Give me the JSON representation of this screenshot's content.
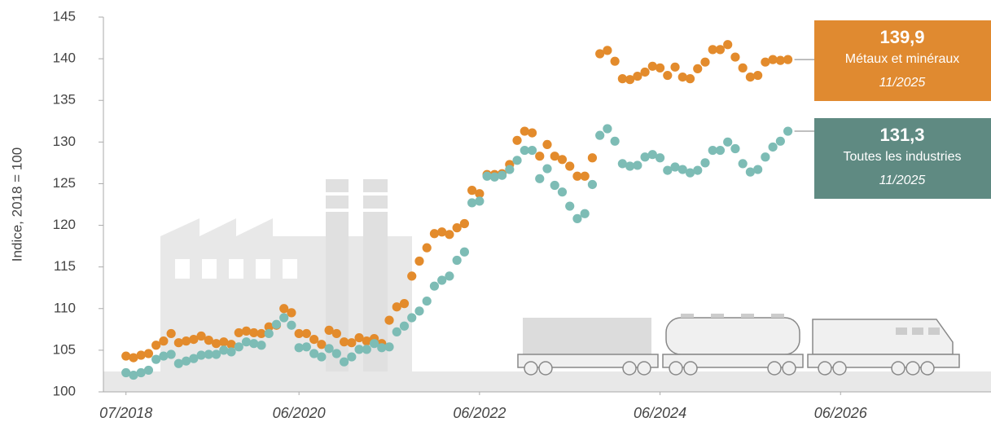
{
  "chart_data": {
    "type": "scatter",
    "y_label": "Indice, 2018 = 100",
    "x": [
      "2018-07",
      "2018-08",
      "2018-09",
      "2018-10",
      "2018-11",
      "2018-12",
      "2019-01",
      "2019-02",
      "2019-03",
      "2019-04",
      "2019-05",
      "2019-06",
      "2019-07",
      "2019-08",
      "2019-09",
      "2019-10",
      "2019-11",
      "2019-12",
      "2020-01",
      "2020-02",
      "2020-03",
      "2020-04",
      "2020-05",
      "2020-06",
      "2020-07",
      "2020-08",
      "2020-09",
      "2020-10",
      "2020-11",
      "2020-12",
      "2021-01",
      "2021-02",
      "2021-03",
      "2021-04",
      "2021-05",
      "2021-06",
      "2021-07",
      "2021-08",
      "2021-09",
      "2021-10",
      "2021-11",
      "2021-12",
      "2022-01",
      "2022-02",
      "2022-03",
      "2022-04",
      "2022-05",
      "2022-06",
      "2022-07",
      "2022-08",
      "2022-09",
      "2022-10",
      "2022-11",
      "2022-12",
      "2023-01",
      "2023-02",
      "2023-03",
      "2023-04",
      "2023-05",
      "2023-06",
      "2023-07",
      "2023-08",
      "2023-09",
      "2023-10",
      "2023-11",
      "2023-12",
      "2024-01",
      "2024-02",
      "2024-03",
      "2024-04",
      "2024-05",
      "2024-06",
      "2024-07",
      "2024-08",
      "2024-09",
      "2024-10",
      "2024-11",
      "2024-12",
      "2025-01",
      "2025-02",
      "2025-03",
      "2025-04",
      "2025-05",
      "2025-06",
      "2025-07",
      "2025-08",
      "2025-09",
      "2025-10",
      "2025-11"
    ],
    "series": [
      {
        "name": "Métaux et minéraux",
        "color": "#e38b2c",
        "label_color": "#e08a30",
        "last_label": "139,9",
        "last_date": "11/2025",
        "values": [
          104.3,
          104.1,
          104.4,
          104.6,
          105.6,
          106.1,
          107.0,
          105.9,
          106.1,
          106.3,
          106.7,
          106.2,
          105.8,
          106.0,
          105.7,
          107.1,
          107.3,
          107.1,
          107.0,
          107.8,
          108.0,
          110.0,
          109.5,
          107.0,
          107.0,
          106.3,
          105.7,
          107.4,
          107.0,
          106.0,
          105.9,
          106.5,
          106.1,
          106.4,
          105.8,
          108.6,
          110.2,
          110.6,
          113.9,
          115.7,
          117.3,
          119.0,
          119.2,
          118.9,
          119.7,
          120.2,
          124.2,
          123.8,
          126.1,
          126.1,
          126.2,
          127.3,
          130.2,
          131.3,
          131.1,
          128.3,
          129.7,
          128.3,
          127.9,
          127.1,
          125.9,
          125.9,
          128.1,
          140.6,
          141.0,
          139.7,
          137.6,
          137.5,
          137.9,
          138.4,
          139.1,
          138.9,
          138.0,
          139.0,
          137.8,
          137.6,
          138.8,
          139.6,
          141.1,
          141.1,
          141.7,
          140.2,
          138.9,
          137.8,
          138.0,
          139.6,
          139.9,
          139.8,
          139.9
        ]
      },
      {
        "name": "Toutes les industries",
        "color": "#7dbcb5",
        "label_color": "#5f8a82",
        "last_label": "131,3",
        "last_date": "11/2025",
        "values": [
          102.3,
          102.0,
          102.3,
          102.6,
          103.9,
          104.3,
          104.5,
          103.4,
          103.7,
          104.0,
          104.4,
          104.5,
          104.5,
          105.0,
          104.8,
          105.4,
          106.0,
          105.8,
          105.6,
          107.0,
          108.1,
          108.9,
          108.0,
          105.3,
          105.4,
          104.6,
          104.2,
          105.2,
          104.6,
          103.6,
          104.2,
          105.1,
          105.1,
          105.8,
          105.3,
          105.4,
          107.2,
          107.9,
          108.9,
          109.7,
          110.9,
          112.7,
          113.4,
          113.9,
          115.8,
          116.8,
          122.7,
          122.9,
          125.9,
          125.8,
          126.0,
          126.7,
          127.8,
          129.0,
          129.0,
          125.6,
          126.8,
          124.8,
          124.0,
          122.3,
          120.8,
          121.4,
          124.9,
          130.8,
          131.6,
          130.1,
          127.4,
          127.1,
          127.2,
          128.2,
          128.5,
          128.1,
          126.6,
          127.0,
          126.7,
          126.3,
          126.6,
          127.5,
          129.0,
          129.0,
          130.0,
          129.2,
          127.4,
          126.4,
          126.7,
          128.2,
          129.4,
          130.1,
          131.3
        ]
      }
    ],
    "xlim": [
      "2018-04",
      "2028-02"
    ],
    "xticks": [
      {
        "value": "2018-07",
        "label": "07/2018"
      },
      {
        "value": "2020-06",
        "label": "06/2020"
      },
      {
        "value": "2022-06",
        "label": "06/2022"
      },
      {
        "value": "2024-06",
        "label": "06/2024"
      },
      {
        "value": "2026-06",
        "label": "06/2026"
      }
    ],
    "ylim": [
      100,
      145
    ],
    "yticks": [
      100,
      105,
      110,
      115,
      120,
      125,
      130,
      135,
      140,
      145
    ],
    "grid": false
  }
}
